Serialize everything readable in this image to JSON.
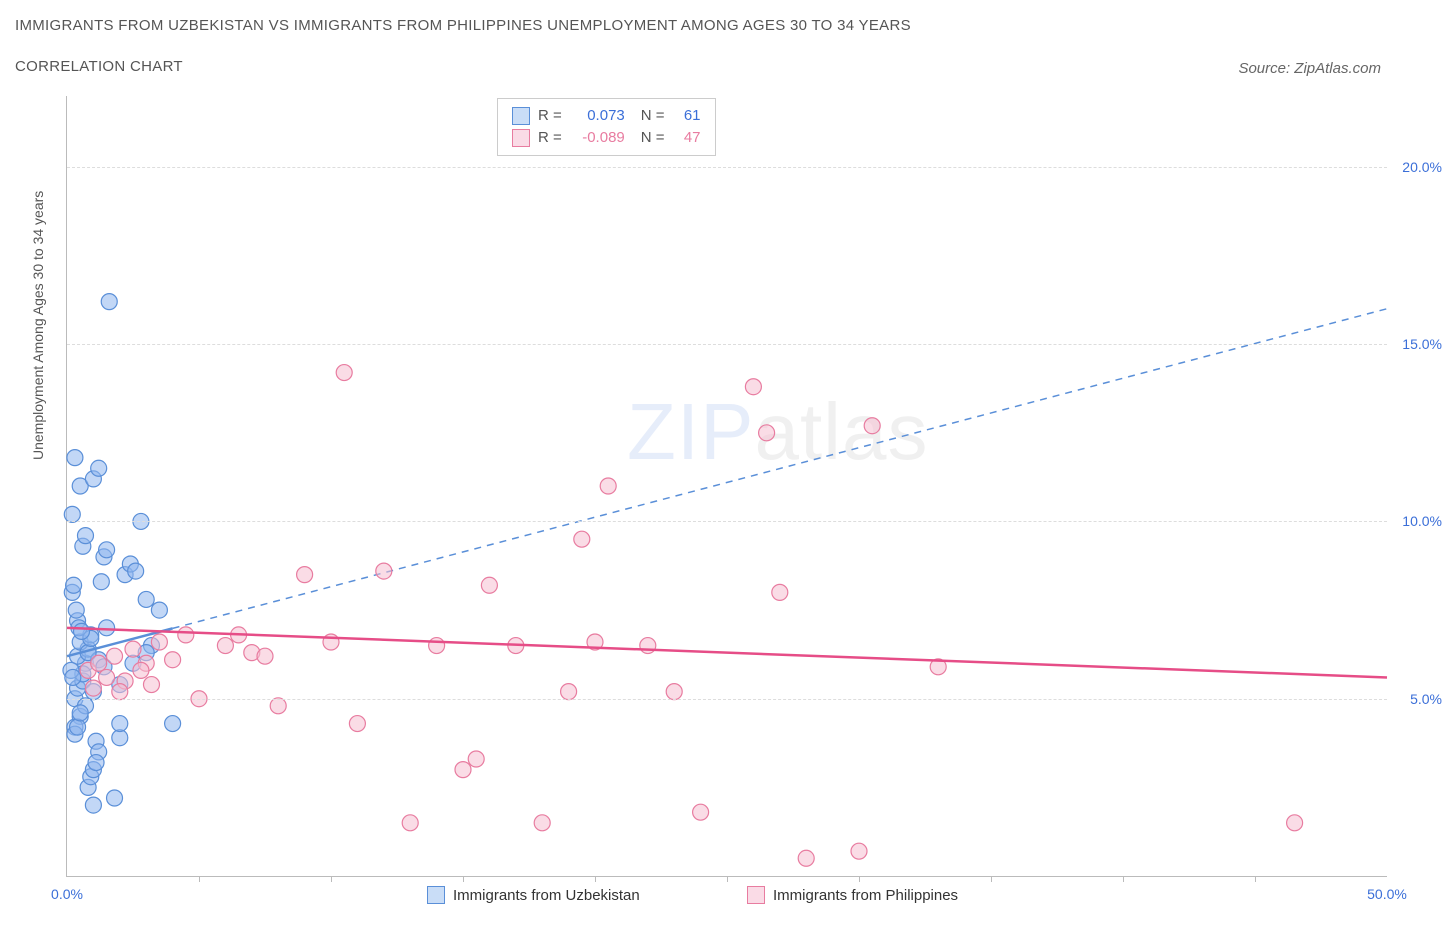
{
  "title_line1": "IMMIGRANTS FROM UZBEKISTAN VS IMMIGRANTS FROM PHILIPPINES UNEMPLOYMENT AMONG AGES 30 TO 34 YEARS",
  "title_line2": "CORRELATION CHART",
  "source": "Source: ZipAtlas.com",
  "y_axis_label": "Unemployment Among Ages 30 to 34 years",
  "watermark": "ZIPatlas",
  "chart": {
    "type": "scatter",
    "xlim": [
      0,
      50
    ],
    "ylim": [
      0,
      22
    ],
    "x_ticks": [
      0,
      50
    ],
    "x_tick_labels": [
      "0.0%",
      "50.0%"
    ],
    "x_minor_ticks": [
      5,
      10,
      15,
      20,
      25,
      30,
      35,
      40,
      45
    ],
    "y_ticks": [
      5,
      10,
      15,
      20
    ],
    "y_tick_labels": [
      "5.0%",
      "10.0%",
      "15.0%",
      "20.0%"
    ],
    "background_color": "#ffffff",
    "grid_color": "#dddddd",
    "marker_radius": 8,
    "marker_opacity": 0.55,
    "series": [
      {
        "name": "Immigrants from Uzbekistan",
        "color_fill": "#8fb7ee",
        "color_stroke": "#5a8fd8",
        "trend_style": "dashed",
        "trend_color": "#5a8fd8",
        "trend_solid_xmax": 4.0,
        "trend_y_start": 6.2,
        "trend_y_end": 16.0,
        "R": "0.073",
        "N": "61",
        "points": [
          [
            0.3,
            5.0
          ],
          [
            0.4,
            5.3
          ],
          [
            0.5,
            4.5
          ],
          [
            0.3,
            4.2
          ],
          [
            0.6,
            5.5
          ],
          [
            0.7,
            6.0
          ],
          [
            0.4,
            6.2
          ],
          [
            0.8,
            6.4
          ],
          [
            0.5,
            6.6
          ],
          [
            0.9,
            6.8
          ],
          [
            0.6,
            5.7
          ],
          [
            1.0,
            5.2
          ],
          [
            0.7,
            4.8
          ],
          [
            1.2,
            6.1
          ],
          [
            0.8,
            6.3
          ],
          [
            1.4,
            5.9
          ],
          [
            0.9,
            6.7
          ],
          [
            1.5,
            7.0
          ],
          [
            1.0,
            2.0
          ],
          [
            1.8,
            2.2
          ],
          [
            1.1,
            3.8
          ],
          [
            2.0,
            3.9
          ],
          [
            1.2,
            3.5
          ],
          [
            2.2,
            8.5
          ],
          [
            1.3,
            8.3
          ],
          [
            2.4,
            8.8
          ],
          [
            1.4,
            9.0
          ],
          [
            2.6,
            8.6
          ],
          [
            1.5,
            9.2
          ],
          [
            2.8,
            10.0
          ],
          [
            0.2,
            10.2
          ],
          [
            3.0,
            7.8
          ],
          [
            0.4,
            7.2
          ],
          [
            3.2,
            6.5
          ],
          [
            0.5,
            11.0
          ],
          [
            1.0,
            11.2
          ],
          [
            1.2,
            11.5
          ],
          [
            0.3,
            11.8
          ],
          [
            2.0,
            4.3
          ],
          [
            4.0,
            4.3
          ],
          [
            0.6,
            9.3
          ],
          [
            0.7,
            9.6
          ],
          [
            0.8,
            2.5
          ],
          [
            0.9,
            2.8
          ],
          [
            1.0,
            3.0
          ],
          [
            1.1,
            3.2
          ],
          [
            1.6,
            16.2
          ],
          [
            2.0,
            5.4
          ],
          [
            2.5,
            6.0
          ],
          [
            3.0,
            6.3
          ],
          [
            3.5,
            7.5
          ],
          [
            0.2,
            8.0
          ],
          [
            0.25,
            8.2
          ],
          [
            0.35,
            7.5
          ],
          [
            0.45,
            7.0
          ],
          [
            0.55,
            6.9
          ],
          [
            0.15,
            5.8
          ],
          [
            0.22,
            5.6
          ],
          [
            0.3,
            4.0
          ],
          [
            0.4,
            4.2
          ],
          [
            0.5,
            4.6
          ]
        ]
      },
      {
        "name": "Immigrants from Philippines",
        "color_fill": "#f6c0d2",
        "color_stroke": "#e87ca0",
        "trend_style": "solid",
        "trend_color": "#e64d87",
        "trend_y_start": 7.0,
        "trend_y_end": 5.6,
        "R": "-0.089",
        "N": "47",
        "points": [
          [
            0.8,
            5.8
          ],
          [
            1.2,
            6.0
          ],
          [
            1.8,
            6.2
          ],
          [
            2.2,
            5.5
          ],
          [
            2.5,
            6.4
          ],
          [
            3.0,
            6.0
          ],
          [
            3.5,
            6.6
          ],
          [
            4.5,
            6.8
          ],
          [
            5.0,
            5.0
          ],
          [
            6.0,
            6.5
          ],
          [
            7.0,
            6.3
          ],
          [
            8.0,
            4.8
          ],
          [
            9.0,
            8.5
          ],
          [
            10.0,
            6.6
          ],
          [
            10.5,
            14.2
          ],
          [
            11.0,
            4.3
          ],
          [
            12.0,
            8.6
          ],
          [
            13.0,
            1.5
          ],
          [
            14.0,
            6.5
          ],
          [
            15.0,
            3.0
          ],
          [
            15.5,
            3.3
          ],
          [
            16.0,
            8.2
          ],
          [
            17.0,
            6.5
          ],
          [
            18.0,
            1.5
          ],
          [
            19.0,
            5.2
          ],
          [
            19.5,
            9.5
          ],
          [
            20.0,
            6.6
          ],
          [
            20.5,
            11.0
          ],
          [
            22.0,
            6.5
          ],
          [
            23.0,
            5.2
          ],
          [
            24.0,
            1.8
          ],
          [
            26.0,
            13.8
          ],
          [
            26.5,
            12.5
          ],
          [
            27.0,
            8.0
          ],
          [
            28.0,
            0.5
          ],
          [
            30.0,
            0.7
          ],
          [
            30.5,
            12.7
          ],
          [
            33.0,
            5.9
          ],
          [
            46.5,
            1.5
          ],
          [
            1.0,
            5.3
          ],
          [
            1.5,
            5.6
          ],
          [
            2.0,
            5.2
          ],
          [
            2.8,
            5.8
          ],
          [
            3.2,
            5.4
          ],
          [
            4.0,
            6.1
          ],
          [
            6.5,
            6.8
          ],
          [
            7.5,
            6.2
          ]
        ]
      }
    ]
  },
  "legend": {
    "series1_label": "Immigrants from Uzbekistan",
    "series2_label": "Immigrants from Philippines"
  }
}
